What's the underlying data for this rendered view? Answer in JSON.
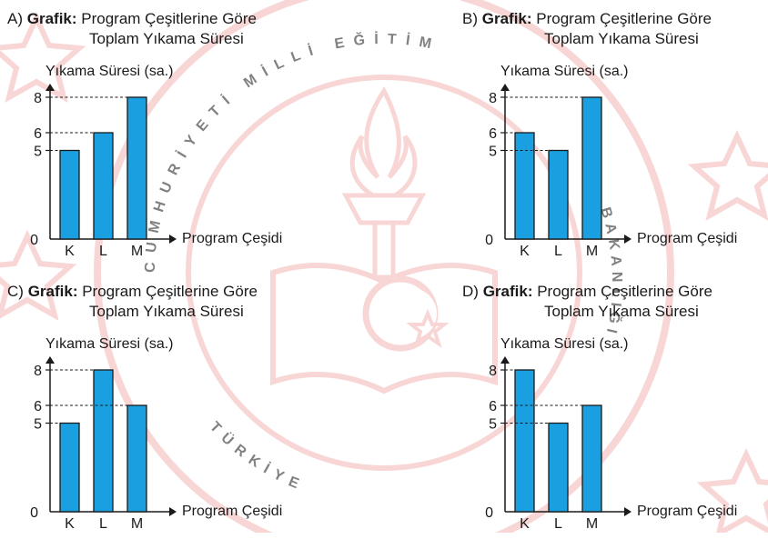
{
  "watermark": {
    "text_top": "CUMHURİYETİ MİLLİ EĞİTİM",
    "text_right": "BAKANLIĞI",
    "text_bottom": "TÜRKİYE",
    "color": "#f3b5b5"
  },
  "bar_color": "#1aa0e0",
  "panels": [
    {
      "option": "A)",
      "grafik_word": "Grafik:",
      "title_line1": "Program Çeşitlerine Göre",
      "title_line2": "Toplam Yıkama Süresi"
    },
    {
      "option": "B)",
      "grafik_word": "Grafik:",
      "title_line1": "Program Çeşitlerine Göre",
      "title_line2": "Toplam Yıkama Süresi"
    },
    {
      "option": "C)",
      "grafik_word": "Grafik:",
      "title_line1": "Program Çeşitlerine Göre",
      "title_line2": "Toplam Yıkama Süresi"
    },
    {
      "option": "D)",
      "grafik_word": "Grafik:",
      "title_line1": "Program Çeşitlerine Göre",
      "title_line2": "Toplam Yıkama Süresi"
    }
  ],
  "chart_data": [
    {
      "type": "bar",
      "title": "Program Çeşitlerine Göre Toplam Yıkama Süresi",
      "xlabel": "Program Çeşidi",
      "ylabel": "Yıkama Süresi (sa.)",
      "categories": [
        "K",
        "L",
        "M"
      ],
      "values": [
        5,
        6,
        8
      ],
      "yticks": [
        0,
        5,
        6,
        8
      ],
      "ylim": [
        0,
        8
      ],
      "grid": false,
      "dashed_guides": true
    },
    {
      "type": "bar",
      "title": "Program Çeşitlerine Göre Toplam Yıkama Süresi",
      "xlabel": "Program Çeşidi",
      "ylabel": "Yıkama Süresi (sa.)",
      "categories": [
        "K",
        "L",
        "M"
      ],
      "values": [
        6,
        5,
        8
      ],
      "yticks": [
        0,
        5,
        6,
        8
      ],
      "ylim": [
        0,
        8
      ],
      "grid": false,
      "dashed_guides": true
    },
    {
      "type": "bar",
      "title": "Program Çeşitlerine Göre Toplam Yıkama Süresi",
      "xlabel": "Program Çeşidi",
      "ylabel": "Yıkama Süresi (sa.)",
      "categories": [
        "K",
        "L",
        "M"
      ],
      "values": [
        5,
        8,
        6
      ],
      "yticks": [
        0,
        5,
        6,
        8
      ],
      "ylim": [
        0,
        8
      ],
      "grid": false,
      "dashed_guides": true
    },
    {
      "type": "bar",
      "title": "Program Çeşitlerine Göre Toplam Yıkama Süresi",
      "xlabel": "Program Çeşidi",
      "ylabel": "Yıkama Süresi (sa.)",
      "categories": [
        "K",
        "L",
        "M"
      ],
      "values": [
        8,
        5,
        6
      ],
      "yticks": [
        0,
        5,
        6,
        8
      ],
      "ylim": [
        0,
        8
      ],
      "grid": false,
      "dashed_guides": true
    }
  ]
}
